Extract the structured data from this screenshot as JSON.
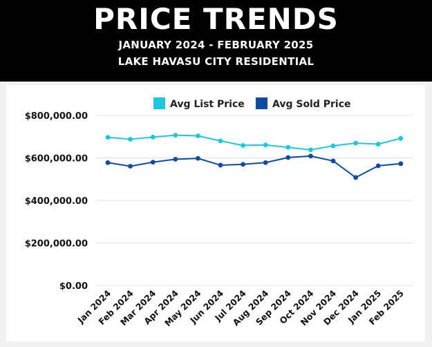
{
  "header": {
    "title": "PRICE TRENDS",
    "subtitle_dates": "JANUARY 2024 - FEBRUARY 2025",
    "subtitle_area": "LAKE HAVASU CITY RESIDENTIAL"
  },
  "chart_data": {
    "type": "line",
    "categories": [
      "Jan 2024",
      "Feb 2024",
      "Mar 2024",
      "Apr 2024",
      "May 2024",
      "Jun 2024",
      "Jul 2024",
      "Aug 2024",
      "Sep 2024",
      "Oct 2024",
      "Nov 2024",
      "Dec 2024",
      "Jan 2025",
      "Feb 2025"
    ],
    "series": [
      {
        "name": "Avg List Price",
        "color": "#1ec8dc",
        "values": [
          697000,
          688000,
          698000,
          707000,
          704000,
          680000,
          659000,
          661000,
          650000,
          638000,
          657000,
          670000,
          665000,
          692000
        ]
      },
      {
        "name": "Avg Sold Price",
        "color": "#0f4aa3",
        "values": [
          578000,
          561000,
          580000,
          594000,
          598000,
          566000,
          570000,
          578000,
          602000,
          609000,
          586000,
          508000,
          563000,
          573000
        ]
      }
    ],
    "yticks": [
      "$0.00",
      "$200,000.00",
      "$400,000.00",
      "$600,000.00",
      "$800,000.00"
    ],
    "ytick_values": [
      0,
      200000,
      400000,
      600000,
      800000
    ],
    "ylim": [
      0,
      800000
    ],
    "grid": true,
    "legend_position": "top",
    "xlabel": "",
    "ylabel": ""
  }
}
